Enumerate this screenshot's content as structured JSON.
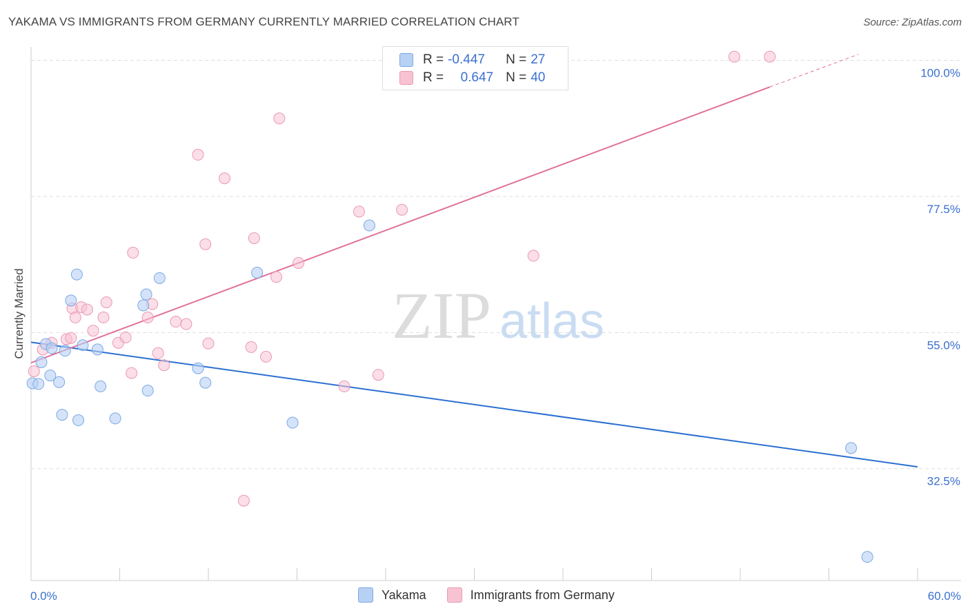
{
  "title": "YAKAMA VS IMMIGRANTS FROM GERMANY CURRENTLY MARRIED CORRELATION CHART",
  "source": "Source: ZipAtlas.com",
  "watermark_zip": "ZIP",
  "watermark_atlas": "atlas",
  "colors": {
    "blue_fill": "#b7d1f5",
    "blue_stroke": "#7aa8e3",
    "blue_line": "#2a6fd1",
    "pink_fill": "#f7c3d3",
    "pink_stroke": "#ea98b2",
    "pink_line": "#e0709a",
    "axis_text": "#3a6fcf",
    "grid": "#dddddd"
  },
  "legend": {
    "row1": {
      "r_label": "R = ",
      "r_value": "-0.447",
      "n_label": "N = ",
      "n_value": "27"
    },
    "row2": {
      "r_label": "R = ",
      "r_value": "0.647",
      "n_label": "N = ",
      "n_value": "40"
    }
  },
  "bottom_legend": {
    "series1": "Yakama",
    "series2": "Immigrants from Germany"
  },
  "chart_data": {
    "type": "scatter",
    "title": "YAKAMA VS IMMIGRANTS FROM GERMANY CURRENTLY MARRIED CORRELATION CHART",
    "xlabel": "",
    "ylabel": "Currently Married",
    "xlim": [
      0,
      60
    ],
    "ylim": [
      14,
      102
    ],
    "x_tick_labels": [
      "0.0%",
      "60.0%"
    ],
    "y_ticks": [
      32.5,
      55.0,
      77.5,
      100.0
    ],
    "y_tick_labels": [
      "32.5%",
      "55.0%",
      "77.5%",
      "100.0%"
    ],
    "series": [
      {
        "name": "Yakama",
        "r": -0.447,
        "n": 27,
        "trend": {
          "x": [
            0,
            60
          ],
          "y": [
            53.4,
            32.8
          ]
        },
        "points": [
          [
            0.1,
            46.6
          ],
          [
            0.5,
            46.5
          ],
          [
            0.7,
            50.1
          ],
          [
            1.0,
            53.1
          ],
          [
            1.3,
            47.9
          ],
          [
            1.4,
            52.4
          ],
          [
            1.9,
            46.8
          ],
          [
            2.1,
            41.4
          ],
          [
            2.7,
            60.3
          ],
          [
            3.1,
            64.6
          ],
          [
            3.2,
            40.5
          ],
          [
            3.5,
            52.9
          ],
          [
            4.5,
            52.2
          ],
          [
            4.7,
            46.1
          ],
          [
            5.7,
            40.8
          ],
          [
            7.6,
            59.5
          ],
          [
            7.8,
            61.3
          ],
          [
            7.9,
            45.4
          ],
          [
            8.7,
            64.0
          ],
          [
            11.3,
            49.1
          ],
          [
            11.8,
            46.7
          ],
          [
            15.3,
            64.9
          ],
          [
            17.7,
            40.1
          ],
          [
            22.9,
            72.7
          ],
          [
            55.5,
            35.9
          ],
          [
            56.6,
            17.9
          ],
          [
            2.3,
            52.0
          ]
        ]
      },
      {
        "name": "Immigrants from Germany",
        "r": 0.647,
        "n": 40,
        "trend": {
          "x": [
            0,
            50
          ],
          "y": [
            50.0,
            95.6
          ]
        },
        "trend_dashed": {
          "x": [
            50,
            56
          ],
          "y": [
            95.6,
            101.0
          ]
        },
        "points": [
          [
            0.2,
            48.6
          ],
          [
            0.8,
            52.2
          ],
          [
            1.4,
            53.3
          ],
          [
            2.4,
            53.9
          ],
          [
            2.7,
            54.1
          ],
          [
            2.8,
            59.0
          ],
          [
            3.4,
            59.2
          ],
          [
            3.8,
            58.8
          ],
          [
            4.2,
            55.3
          ],
          [
            4.9,
            57.5
          ],
          [
            5.1,
            60.0
          ],
          [
            5.9,
            53.3
          ],
          [
            6.4,
            54.2
          ],
          [
            6.8,
            48.3
          ],
          [
            6.9,
            68.2
          ],
          [
            7.9,
            57.5
          ],
          [
            8.2,
            59.7
          ],
          [
            8.6,
            51.6
          ],
          [
            9.0,
            49.6
          ],
          [
            9.8,
            56.8
          ],
          [
            10.5,
            56.4
          ],
          [
            11.3,
            84.4
          ],
          [
            11.8,
            69.6
          ],
          [
            12.0,
            53.2
          ],
          [
            13.1,
            80.5
          ],
          [
            14.4,
            27.2
          ],
          [
            14.9,
            52.6
          ],
          [
            15.1,
            70.6
          ],
          [
            15.9,
            51.0
          ],
          [
            16.6,
            64.2
          ],
          [
            16.8,
            90.4
          ],
          [
            18.1,
            66.5
          ],
          [
            21.2,
            46.1
          ],
          [
            22.2,
            75.0
          ],
          [
            23.5,
            48.0
          ],
          [
            25.1,
            75.3
          ],
          [
            34.0,
            67.7
          ],
          [
            47.6,
            100.6
          ],
          [
            50.0,
            100.6
          ],
          [
            3.0,
            57.5
          ]
        ]
      }
    ]
  }
}
